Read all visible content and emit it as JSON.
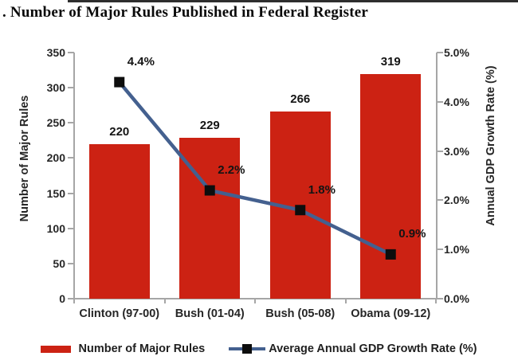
{
  "chart_data": {
    "type": "bar+line",
    "title": ". Number of Major Rules Published in Federal Register",
    "categories": [
      "Clinton (97-00)",
      "Bush (01-04)",
      "Bush (05-08)",
      "Obama (09-12)"
    ],
    "series": [
      {
        "name": "Number of Major Rules",
        "kind": "bar",
        "axis": "left",
        "values": [
          220,
          229,
          266,
          319
        ],
        "data_labels": [
          "220",
          "229",
          "266",
          "319"
        ],
        "color": "#cc2213"
      },
      {
        "name": "Average Annual GDP Growth Rate (%)",
        "kind": "line",
        "axis": "right",
        "values": [
          4.4,
          2.2,
          1.8,
          0.9
        ],
        "data_labels": [
          "4.4%",
          "2.2%",
          "1.8%",
          "0.9%"
        ],
        "color": "#44608f",
        "marker": "black-square"
      }
    ],
    "left_axis": {
      "label": "Number of Major Rules",
      "min": 0,
      "max": 350,
      "step": 50,
      "tick_labels": [
        "0",
        "50",
        "100",
        "150",
        "200",
        "250",
        "300",
        "350"
      ]
    },
    "right_axis": {
      "label": "Annual GDP Growth Rate (%)",
      "min": 0,
      "max": 5,
      "step": 1,
      "tick_labels": [
        "0.0%",
        "1.0%",
        "2.0%",
        "3.0%",
        "4.0%",
        "5.0%"
      ]
    },
    "legend": [
      "Number of Major Rules",
      "Average Annual GDP Growth Rate (%)"
    ],
    "legend_position": "bottom",
    "grid": false
  },
  "colors": {
    "bar": "#cc2213",
    "line": "#44608f",
    "marker": "#0d0d0d",
    "axis": "#a6a6a6",
    "text": "#262626"
  }
}
